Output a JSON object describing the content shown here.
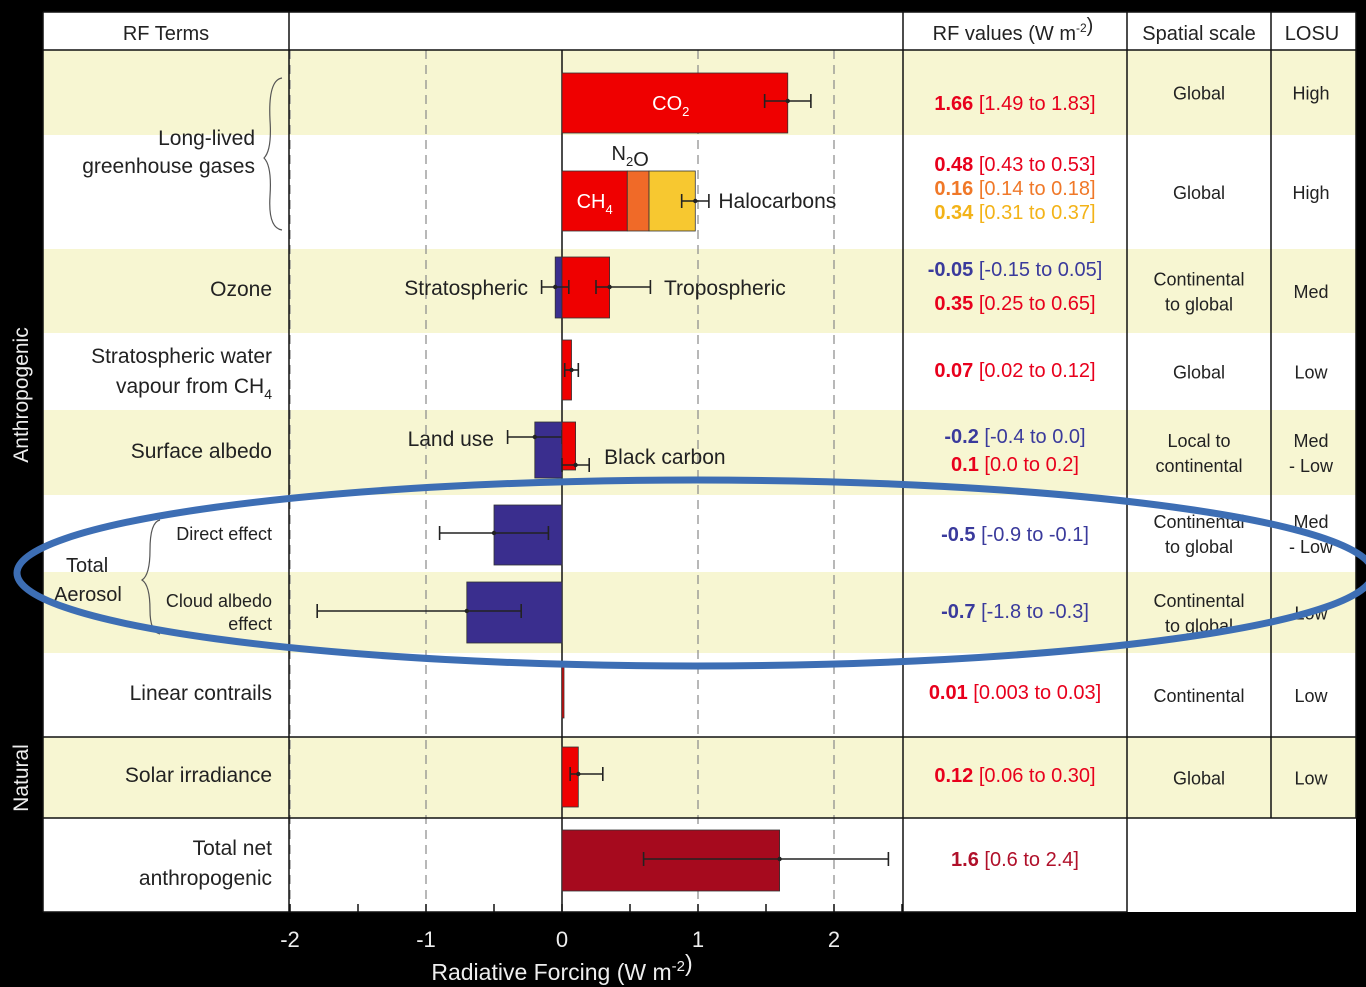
{
  "chart_data": {
    "type": "bar",
    "orientation": "horizontal",
    "xlabel": "Radiative Forcing",
    "xunit": "(W m",
    "xunit_sup": "-2",
    "xunit_close": ")",
    "xlim": [
      -2,
      2.5
    ],
    "xticks": [
      "-2",
      "-1",
      "0",
      "1",
      "2"
    ],
    "headers": {
      "terms": "RF Terms",
      "values": "RF values (W m",
      "values_sup": "-2",
      "values_close": ")",
      "scale": "Spatial scale",
      "losu": "LOSU"
    },
    "groups": {
      "anthropogenic": "Anthropogenic",
      "natural": "Natural",
      "aerosol_1": "Total",
      "aerosol_2": "Aerosol"
    },
    "rows": [
      {
        "label": [
          "Long-lived",
          "greenhouse gases"
        ],
        "scale": [
          "Global"
        ],
        "losu": [
          "High"
        ],
        "values": [
          {
            "value": "1.66",
            "range": "[1.49 to 1.83]",
            "color": "#e8001c"
          }
        ],
        "bars": [
          {
            "name": "CO2",
            "value": 1.66,
            "low": 1.49,
            "high": 1.83,
            "color": "#ef0000"
          }
        ]
      },
      {
        "label": [],
        "scale": [
          "Global"
        ],
        "losu": [
          "High"
        ],
        "values": [
          {
            "value": "0.48",
            "range": "[0.43 to 0.53]",
            "color": "#e8001c"
          },
          {
            "value": "0.16",
            "range": "[0.14 to 0.18]",
            "color": "#f07828"
          },
          {
            "value": "0.34",
            "range": "[0.31 to 0.37]",
            "color": "#f3b318"
          }
        ],
        "bars": [
          {
            "name": "CH4",
            "value": 0.48,
            "color": "#ef0000"
          },
          {
            "name": "N2O",
            "value": 0.16,
            "color": "#f06a28"
          },
          {
            "name": "Halocarbons",
            "value": 0.34,
            "color": "#f7c830"
          }
        ],
        "stack_error": {
          "value": 0.98,
          "low": 0.88,
          "high": 1.08
        }
      },
      {
        "label": [
          "Ozone"
        ],
        "scale": [
          "Continental",
          "to global"
        ],
        "losu": [
          "Med"
        ],
        "values": [
          {
            "value": "-0.05",
            "range": "[-0.15 to 0.05]",
            "color": "#3a3a9c"
          },
          {
            "value": "0.35",
            "range": "[0.25 to 0.65]",
            "color": "#e8001c"
          }
        ],
        "bars": [
          {
            "name": "Stratospheric",
            "value": -0.05,
            "low": -0.15,
            "high": 0.05,
            "color": "#3a2e8e"
          },
          {
            "name": "Tropospheric",
            "value": 0.35,
            "low": 0.25,
            "high": 0.65,
            "color": "#ef0000"
          }
        ]
      },
      {
        "label": [
          "Stratospheric water",
          "vapour from CH"
        ],
        "label_sub": "4",
        "scale": [
          "Global"
        ],
        "losu": [
          "Low"
        ],
        "values": [
          {
            "value": "0.07",
            "range": "[0.02 to 0.12]",
            "color": "#e8001c"
          }
        ],
        "bars": [
          {
            "value": 0.07,
            "low": 0.02,
            "high": 0.12,
            "color": "#ef0000"
          }
        ]
      },
      {
        "label": [
          "Surface albedo"
        ],
        "scale": [
          "Local to",
          "continental"
        ],
        "losu": [
          "Med",
          "- Low"
        ],
        "values": [
          {
            "value": "-0.2",
            "range": "[-0.4 to 0.0]",
            "color": "#3a3a9c"
          },
          {
            "value": "0.1",
            "range": "[0.0 to 0.2]",
            "color": "#e8001c"
          }
        ],
        "bars": [
          {
            "name": "Land use",
            "value": -0.2,
            "low": -0.4,
            "high": 0.0,
            "color": "#3a2e8e"
          },
          {
            "name": "Black carbon",
            "value": 0.1,
            "low": 0.0,
            "high": 0.2,
            "color": "#ef0000"
          }
        ]
      },
      {
        "label": [
          "Direct effect"
        ],
        "scale": [
          "Continental",
          "to global"
        ],
        "losu": [
          "Med",
          "- Low"
        ],
        "values": [
          {
            "value": "-0.5",
            "range": "[-0.9 to -0.1]",
            "color": "#3a3a9c"
          }
        ],
        "bars": [
          {
            "value": -0.5,
            "low": -0.9,
            "high": -0.1,
            "color": "#3a2e8e"
          }
        ]
      },
      {
        "label": [
          "Cloud albedo",
          "effect"
        ],
        "scale": [
          "Continental",
          "to global"
        ],
        "losu": [
          "Low"
        ],
        "values": [
          {
            "value": "-0.7",
            "range": "[-1.8 to -0.3]",
            "color": "#3a3a9c"
          }
        ],
        "bars": [
          {
            "value": -0.7,
            "low": -1.8,
            "high": -0.3,
            "color": "#3a2e8e"
          }
        ]
      },
      {
        "label": [
          "Linear contrails"
        ],
        "scale": [
          "Continental"
        ],
        "losu": [
          "Low"
        ],
        "values": [
          {
            "value": "0.01",
            "range": "[0.003 to 0.03]",
            "color": "#e8001c"
          }
        ],
        "bars": [
          {
            "value": 0.01,
            "low": 0.003,
            "high": 0.03,
            "color": "#ef0000"
          }
        ]
      },
      {
        "label": [
          "Solar irradiance"
        ],
        "scale": [
          "Global"
        ],
        "losu": [
          "Low"
        ],
        "values": [
          {
            "value": "0.12",
            "range": "[0.06 to 0.30]",
            "color": "#e8001c"
          }
        ],
        "bars": [
          {
            "value": 0.12,
            "low": 0.06,
            "high": 0.3,
            "color": "#ef0000"
          }
        ]
      },
      {
        "label": [
          "Total net",
          "anthropogenic"
        ],
        "scale": [],
        "losu": [],
        "values": [
          {
            "value": "1.6",
            "range": "[0.6 to 2.4]",
            "color": "#b0102a"
          }
        ],
        "bars": [
          {
            "value": 1.6,
            "low": 0.6,
            "high": 2.4,
            "color": "#a60a1e"
          }
        ]
      }
    ],
    "annotation": "ellipse highlighting Total Aerosol rows",
    "annotation_color": "#3d6eb4"
  }
}
